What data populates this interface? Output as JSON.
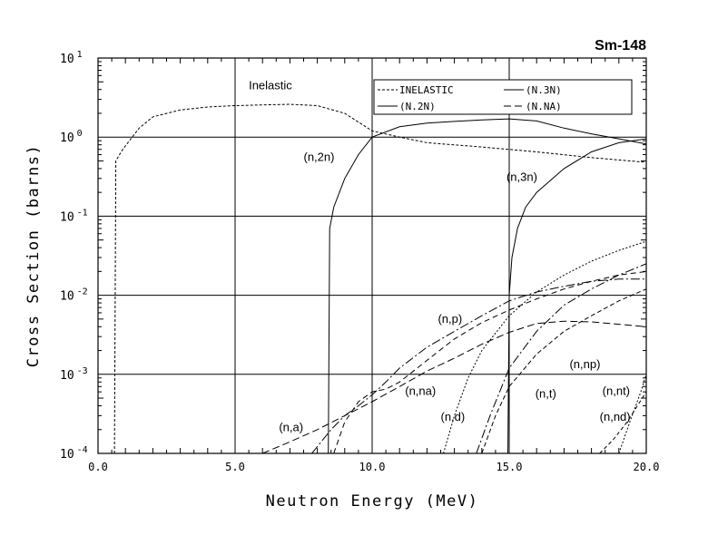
{
  "chart_data": {
    "type": "line",
    "title": "Sm-148",
    "xlabel": "Neutron Energy (MeV)",
    "ylabel": "Cross Section (barns)",
    "xlim": [
      0,
      20
    ],
    "ylim": [
      0.0001,
      10
    ],
    "yscale": "log",
    "grid": true,
    "x_ticks": [
      {
        "value": 0,
        "label": "0.0"
      },
      {
        "value": 5,
        "label": "5.0"
      },
      {
        "value": 10,
        "label": "10.0"
      },
      {
        "value": 15,
        "label": "15.0"
      },
      {
        "value": 20,
        "label": "20.0"
      }
    ],
    "y_ticks": [
      {
        "value": 10,
        "base": "10",
        "exp": "1"
      },
      {
        "value": 1,
        "base": "10",
        "exp": "0"
      },
      {
        "value": 0.1,
        "base": "10",
        "exp": "-1"
      },
      {
        "value": 0.01,
        "base": "10",
        "exp": "-2"
      },
      {
        "value": 0.001,
        "base": "10",
        "exp": "-3"
      },
      {
        "value": 0.0001,
        "base": "10",
        "exp": "-4"
      }
    ],
    "legend": {
      "placement": "top-right",
      "entries": [
        {
          "text": "INELASTIC",
          "dash": "3,2"
        },
        {
          "text": "(N.3N)",
          "dash": ""
        },
        {
          "text": "(N.2N)",
          "dash": ""
        },
        {
          "text": "(N.NA)",
          "dash": "8,4"
        }
      ]
    },
    "series": [
      {
        "dash": "3,2",
        "points": [
          [
            0.6,
            0.0001
          ],
          [
            0.65,
            0.5
          ],
          [
            0.9,
            0.7
          ],
          [
            1.2,
            0.95
          ],
          [
            1.5,
            1.3
          ],
          [
            2,
            1.8
          ],
          [
            3,
            2.2
          ],
          [
            4,
            2.4
          ],
          [
            5,
            2.5
          ],
          [
            6,
            2.55
          ],
          [
            7,
            2.6
          ],
          [
            8,
            2.5
          ],
          [
            9,
            2.0
          ],
          [
            10,
            1.2
          ],
          [
            11,
            1.0
          ],
          [
            12,
            0.85
          ],
          [
            14,
            0.75
          ],
          [
            16,
            0.65
          ],
          [
            18,
            0.55
          ],
          [
            20,
            0.48
          ]
        ]
      },
      {
        "dash": "",
        "points": [
          [
            8.4,
            0.0001
          ],
          [
            8.45,
            0.07
          ],
          [
            8.6,
            0.13
          ],
          [
            9,
            0.3
          ],
          [
            9.5,
            0.6
          ],
          [
            10,
            1.0
          ],
          [
            11,
            1.35
          ],
          [
            12,
            1.5
          ],
          [
            13,
            1.58
          ],
          [
            14,
            1.65
          ],
          [
            15,
            1.7
          ],
          [
            16,
            1.6
          ],
          [
            17,
            1.3
          ],
          [
            18,
            1.1
          ],
          [
            19,
            0.95
          ],
          [
            20,
            0.82
          ]
        ]
      },
      {
        "dash": "",
        "points": [
          [
            14.95,
            0.0001
          ],
          [
            15.0,
            0.01
          ],
          [
            15.1,
            0.03
          ],
          [
            15.3,
            0.07
          ],
          [
            15.6,
            0.13
          ],
          [
            16,
            0.2
          ],
          [
            17,
            0.4
          ],
          [
            18,
            0.65
          ],
          [
            19,
            0.85
          ],
          [
            20,
            0.95
          ]
        ]
      },
      {
        "dash": "8,4",
        "points": [
          [
            6,
            0.0001
          ],
          [
            7,
            0.00014
          ],
          [
            8,
            0.0002
          ],
          [
            9,
            0.0003
          ],
          [
            10,
            0.00045
          ],
          [
            11,
            0.0007
          ],
          [
            12,
            0.0011
          ],
          [
            13,
            0.0016
          ],
          [
            14,
            0.0024
          ],
          [
            15,
            0.0034
          ],
          [
            16,
            0.0044
          ],
          [
            17,
            0.0047
          ],
          [
            18,
            0.0046
          ],
          [
            19,
            0.0043
          ],
          [
            20,
            0.004
          ]
        ]
      },
      {
        "dash": "10,3,2,3",
        "points": [
          [
            7.8,
            0.0001
          ],
          [
            8.5,
            0.0002
          ],
          [
            9,
            0.0003
          ],
          [
            9.5,
            0.0004
          ],
          [
            10,
            0.00055
          ],
          [
            10.5,
            0.0008
          ],
          [
            11,
            0.0012
          ],
          [
            12,
            0.0022
          ],
          [
            13,
            0.0035
          ],
          [
            14,
            0.0055
          ],
          [
            15,
            0.0085
          ],
          [
            16,
            0.011
          ],
          [
            17,
            0.013
          ],
          [
            18,
            0.015
          ],
          [
            19,
            0.016
          ],
          [
            20,
            0.016
          ]
        ]
      },
      {
        "dash": "6,4",
        "points": [
          [
            8.6,
            0.0001
          ],
          [
            9,
            0.00025
          ],
          [
            9.5,
            0.00045
          ],
          [
            10,
            0.0006
          ],
          [
            10.5,
            0.00065
          ],
          [
            11,
            0.0008
          ],
          [
            12,
            0.0015
          ],
          [
            13,
            0.0028
          ],
          [
            14,
            0.0045
          ],
          [
            15,
            0.0065
          ],
          [
            16,
            0.009
          ],
          [
            17,
            0.012
          ],
          [
            18,
            0.015
          ],
          [
            19,
            0.018
          ],
          [
            20,
            0.02
          ]
        ]
      },
      {
        "dash": "2,2",
        "points": [
          [
            12.6,
            0.0001
          ],
          [
            13,
            0.0003
          ],
          [
            13.5,
            0.0009
          ],
          [
            14,
            0.002
          ],
          [
            15,
            0.0055
          ],
          [
            16,
            0.011
          ],
          [
            17,
            0.018
          ],
          [
            18,
            0.027
          ],
          [
            19,
            0.037
          ],
          [
            20,
            0.048
          ]
        ]
      },
      {
        "dash": "10,3,2,3",
        "points": [
          [
            13.8,
            0.0001
          ],
          [
            14.3,
            0.0003
          ],
          [
            15,
            0.0012
          ],
          [
            16,
            0.0035
          ],
          [
            17,
            0.0075
          ],
          [
            18,
            0.012
          ],
          [
            19,
            0.018
          ],
          [
            20,
            0.025
          ]
        ]
      },
      {
        "dash": "5,3",
        "points": [
          [
            14.0,
            0.0001
          ],
          [
            14.5,
            0.0003
          ],
          [
            15,
            0.0007
          ],
          [
            16,
            0.0018
          ],
          [
            17,
            0.0035
          ],
          [
            18,
            0.0055
          ],
          [
            19,
            0.0085
          ],
          [
            20,
            0.012
          ]
        ]
      },
      {
        "dash": "4,3",
        "points": [
          [
            18.3,
            0.0001
          ],
          [
            18.8,
            0.00015
          ],
          [
            19.3,
            0.00025
          ],
          [
            20,
            0.0006
          ]
        ]
      },
      {
        "dash": "2,2",
        "points": [
          [
            19.0,
            0.0001
          ],
          [
            19.4,
            0.00025
          ],
          [
            19.8,
            0.0006
          ],
          [
            20,
            0.001
          ]
        ]
      }
    ],
    "annotations": [
      {
        "text": "Inelastic",
        "x": 5.5,
        "y": 4.0
      },
      {
        "text": "(n,2n)",
        "x": 7.5,
        "y": 0.5
      },
      {
        "text": "(n,3n)",
        "x": 14.9,
        "y": 0.28
      },
      {
        "text": "(n,p)",
        "x": 12.4,
        "y": 0.0045
      },
      {
        "text": "(n,np)",
        "x": 17.2,
        "y": 0.0012
      },
      {
        "text": "(n,na)",
        "x": 11.2,
        "y": 0.00055
      },
      {
        "text": "(n,t)",
        "x": 15.95,
        "y": 0.00051
      },
      {
        "text": "(n,nt)",
        "x": 18.4,
        "y": 0.00055
      },
      {
        "text": "(n,d)",
        "x": 12.5,
        "y": 0.00026
      },
      {
        "text": "(n,a)",
        "x": 6.6,
        "y": 0.00019
      },
      {
        "text": "(n,nd)",
        "x": 18.3,
        "y": 0.00026
      }
    ]
  }
}
